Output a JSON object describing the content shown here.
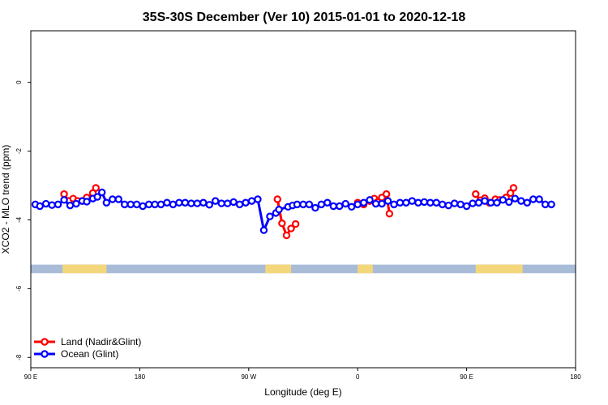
{
  "chart_data": {
    "type": "line",
    "title": "35S-30S December (Ver 10)   2015-01-01 to 2020-12-18",
    "xlabel": "Longitude (deg E)",
    "ylabel": "XCO2 - MLO trend (ppm)",
    "xlim": [
      90,
      450
    ],
    "ylim": [
      -8.3,
      1.5
    ],
    "x_ticks": [
      {
        "value": 90,
        "label": "90 E"
      },
      {
        "value": 162,
        "label": "180"
      },
      {
        "value": 234,
        "label": "90 W"
      },
      {
        "value": 306,
        "label": "0"
      },
      {
        "value": 378,
        "label": "90 E"
      },
      {
        "value": 450,
        "label": "180"
      }
    ],
    "y_ticks": [
      {
        "value": 0,
        "label": "0"
      },
      {
        "value": -2,
        "label": "-2"
      },
      {
        "value": -4,
        "label": "-4"
      },
      {
        "value": -6,
        "label": "-6"
      },
      {
        "value": -8,
        "label": "-8"
      }
    ],
    "legend_position": "bottom-left",
    "grid": false,
    "land_strip": {
      "y_range": [
        -5.55,
        -5.3
      ],
      "ocean_color": "#a8bcd8",
      "land_color": "#f4d77a",
      "land_longitudes": [
        [
          111,
          140
        ],
        [
          245,
          262
        ],
        [
          306,
          316
        ],
        [
          384,
          415
        ]
      ]
    },
    "series": [
      {
        "name": "Land (Nadir&Glint)",
        "color": "#ff0000",
        "segments": [
          {
            "x": [
              112,
              115,
              118,
              121,
              124,
              127,
              131,
              133
            ],
            "y": [
              -3.25,
              -3.45,
              -3.38,
              -3.45,
              -3.45,
              -3.35,
              -3.22,
              -3.07
            ]
          },
          {
            "x": [
              253,
              256,
              259,
              262,
              265
            ],
            "y": [
              -3.4,
              -4.1,
              -4.45,
              -4.25,
              -4.12
            ]
          },
          {
            "x": [
              306,
              310,
              314,
              317,
              319,
              322,
              325,
              327
            ],
            "y": [
              -3.5,
              -3.55,
              -3.45,
              -3.38,
              -3.48,
              -3.35,
              -3.25,
              -3.82
            ]
          },
          {
            "x": [
              384,
              387,
              390,
              393,
              397,
              400,
              404,
              407,
              409
            ],
            "y": [
              -3.25,
              -3.43,
              -3.37,
              -3.5,
              -3.4,
              -3.42,
              -3.35,
              -3.22,
              -3.07
            ]
          }
        ]
      },
      {
        "name": "Ocean (Glint)",
        "color": "#0000ff",
        "x": [
          93,
          96,
          100,
          104,
          108,
          112,
          116,
          120,
          124,
          127,
          131,
          134,
          137,
          140,
          144,
          148,
          152,
          156,
          160,
          164,
          168,
          172,
          176,
          180,
          184,
          188,
          192,
          196,
          200,
          204,
          208,
          212,
          216,
          220,
          224,
          228,
          232,
          236,
          240,
          244,
          248,
          252,
          254,
          260,
          263,
          266,
          270,
          274,
          278,
          282,
          286,
          290,
          294,
          298,
          302,
          306,
          310,
          314,
          318,
          322,
          326,
          330,
          334,
          338,
          342,
          346,
          350,
          354,
          358,
          362,
          366,
          370,
          374,
          378,
          382,
          386,
          390,
          394,
          398,
          402,
          406,
          410,
          414,
          418,
          422,
          426,
          430,
          434
        ],
        "y": [
          -3.55,
          -3.6,
          -3.53,
          -3.57,
          -3.55,
          -3.42,
          -3.58,
          -3.53,
          -3.45,
          -3.47,
          -3.38,
          -3.33,
          -3.2,
          -3.5,
          -3.4,
          -3.4,
          -3.55,
          -3.55,
          -3.55,
          -3.6,
          -3.55,
          -3.55,
          -3.55,
          -3.5,
          -3.55,
          -3.5,
          -3.5,
          -3.52,
          -3.52,
          -3.5,
          -3.56,
          -3.45,
          -3.52,
          -3.52,
          -3.48,
          -3.55,
          -3.5,
          -3.45,
          -3.4,
          -4.3,
          -3.9,
          -3.8,
          -3.7,
          -3.62,
          -3.58,
          -3.55,
          -3.55,
          -3.55,
          -3.65,
          -3.55,
          -3.5,
          -3.6,
          -3.6,
          -3.53,
          -3.62,
          -3.55,
          -3.5,
          -3.42,
          -3.53,
          -3.53,
          -3.45,
          -3.55,
          -3.5,
          -3.5,
          -3.45,
          -3.5,
          -3.48,
          -3.5,
          -3.5,
          -3.55,
          -3.58,
          -3.52,
          -3.55,
          -3.6,
          -3.52,
          -3.5,
          -3.45,
          -3.5,
          -3.5,
          -3.42,
          -3.48,
          -3.38,
          -3.45,
          -3.5,
          -3.4,
          -3.4,
          -3.55,
          -3.55
        ]
      }
    ]
  }
}
